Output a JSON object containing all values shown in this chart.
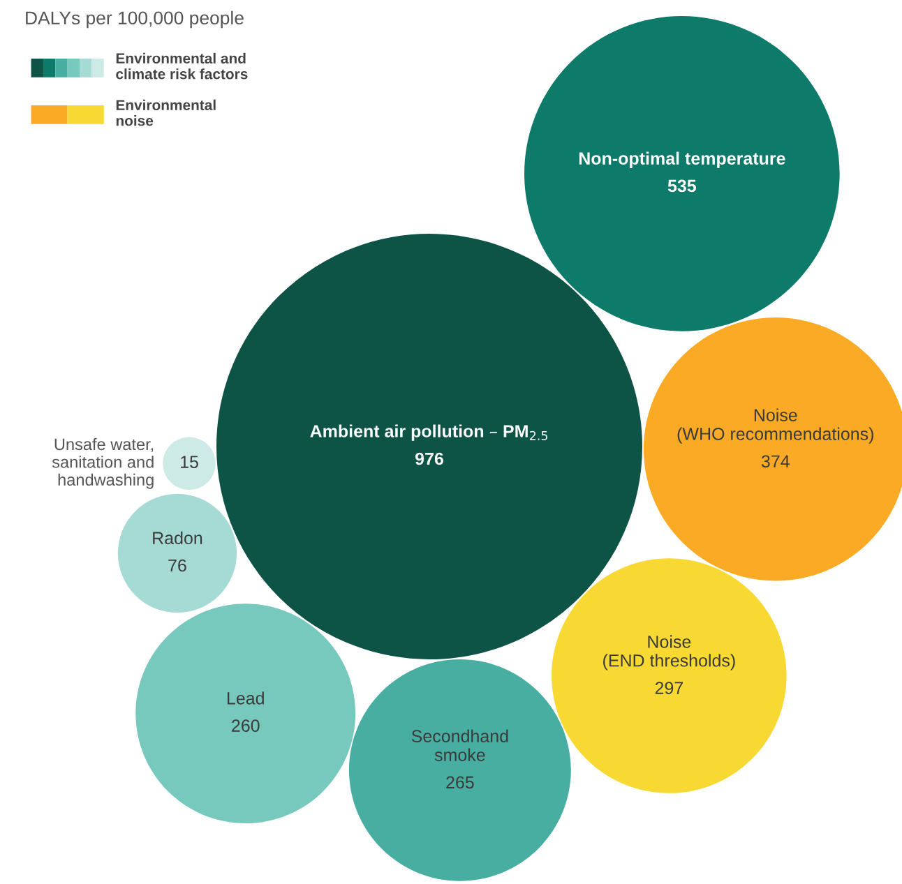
{
  "chart_data": {
    "type": "other",
    "title": "DALYs per 100,000 people",
    "categories": [
      "Ambient air pollution – PM$_{2.5}$",
      "Non-optimal temperature",
      "Noise\n(WHO recommendations)",
      "Noise\n(END thresholds)",
      "Secondhand\nsmoke",
      "Lead",
      "Radon",
      "Unsafe water,\nsanitation and\nhandwashing"
    ],
    "series": [
      {
        "name": "Environmental and\nclimate risk factors",
        "values": [
          976,
          535,
          null,
          null,
          265,
          260,
          76,
          15
        ],
        "colors": [
          "#0d5346",
          "#0e7a6a",
          null,
          null,
          "#48aea2",
          "#76c9bc",
          "#a6dbd5",
          "#cdeae6"
        ]
      },
      {
        "name": "Environmental\nnoise",
        "values": [
          null,
          null,
          374,
          297,
          null,
          null,
          null,
          null
        ],
        "colors": [
          null,
          null,
          "#fbaa25",
          "#f8d934",
          null,
          null,
          null,
          null
        ]
      }
    ],
    "data_labels": true,
    "legend": "top left"
  }
}
